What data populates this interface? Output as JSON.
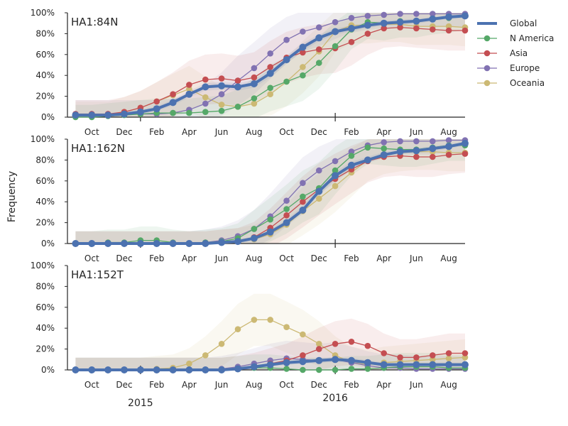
{
  "chart_data": {
    "type": "line",
    "ylabel": "Frequency",
    "ylim": [
      0,
      1
    ],
    "y_ticks": [
      "0%",
      "20%",
      "40%",
      "60%",
      "80%",
      "100%"
    ],
    "x_ticks": [
      "Oct",
      "Dec",
      "Feb",
      "Apr",
      "Jun",
      "Aug",
      "Oct",
      "Dec",
      "Feb",
      "Apr",
      "Jun",
      "Aug"
    ],
    "x_ticks_t": [
      1.5,
      3.5,
      5.5,
      7.5,
      9.5,
      11.5,
      13.5,
      15.5,
      17.5,
      19.5,
      21.5,
      23.5
    ],
    "year_labels": [
      {
        "label": "2015",
        "t": 4.5
      },
      {
        "label": "2016",
        "t": 16.5
      }
    ],
    "year_ticks_t": [
      4.5,
      16.5
    ],
    "xlim": [
      0,
      24.5
    ],
    "t": [
      0.5,
      1.5,
      2.5,
      3.5,
      4.5,
      5.5,
      6.5,
      7.5,
      8.5,
      9.5,
      10.5,
      11.5,
      12.5,
      13.5,
      14.5,
      15.5,
      16.5,
      17.5,
      18.5,
      19.5,
      20.5,
      21.5,
      22.5,
      23.5,
      24.5
    ],
    "legend": {
      "placement": "right",
      "entries": [
        "Global",
        "N America",
        "Asia",
        "Europe",
        "Oceania"
      ]
    },
    "colors": {
      "Global": "#4c72b0",
      "N America": "#55a868",
      "Asia": "#c44e52",
      "Europe": "#8172b2",
      "Oceania": "#ccb974"
    },
    "panels": [
      {
        "title": "HA1:84N",
        "series": [
          {
            "name": "Global",
            "values": [
              0.02,
              0.02,
              0.02,
              0.03,
              0.05,
              0.08,
              0.14,
              0.22,
              0.29,
              0.3,
              0.29,
              0.32,
              0.42,
              0.55,
              0.67,
              0.76,
              0.82,
              0.85,
              0.88,
              0.9,
              0.91,
              0.92,
              0.94,
              0.96,
              0.97
            ]
          },
          {
            "name": "N America",
            "values": [
              0.0,
              0.0,
              0.01,
              0.02,
              0.03,
              0.04,
              0.04,
              0.04,
              0.05,
              0.06,
              0.1,
              0.18,
              0.28,
              0.34,
              0.4,
              0.52,
              0.68,
              0.84,
              0.91,
              0.9,
              0.92,
              0.92,
              0.94,
              0.95,
              0.97
            ]
          },
          {
            "name": "Asia",
            "values": [
              0.03,
              0.03,
              0.03,
              0.05,
              0.09,
              0.15,
              0.22,
              0.31,
              0.36,
              0.37,
              0.35,
              0.38,
              0.48,
              0.57,
              0.62,
              0.65,
              0.66,
              0.72,
              0.8,
              0.85,
              0.86,
              0.85,
              0.84,
              0.83,
              0.83
            ]
          },
          {
            "name": "Europe",
            "values": [
              0.03,
              0.03,
              0.03,
              0.03,
              0.03,
              0.03,
              0.04,
              0.07,
              0.13,
              0.22,
              0.35,
              0.47,
              0.61,
              0.74,
              0.82,
              0.86,
              0.91,
              0.95,
              0.97,
              0.98,
              0.99,
              0.99,
              0.99,
              0.99,
              0.99
            ]
          },
          {
            "name": "Oceania",
            "values": [
              0.02,
              0.02,
              0.02,
              0.05,
              0.09,
              0.15,
              0.21,
              0.27,
              0.19,
              0.12,
              0.1,
              0.13,
              0.22,
              0.34,
              0.48,
              0.63,
              0.82,
              0.88,
              0.88,
              0.89,
              0.89,
              0.87,
              0.87,
              0.87,
              0.86
            ]
          }
        ]
      },
      {
        "title": "HA1:162N",
        "series": [
          {
            "name": "Global",
            "values": [
              0.0,
              0.0,
              0.0,
              0.0,
              0.0,
              0.0,
              0.0,
              0.0,
              0.0,
              0.01,
              0.02,
              0.05,
              0.11,
              0.2,
              0.32,
              0.5,
              0.65,
              0.75,
              0.8,
              0.85,
              0.88,
              0.89,
              0.91,
              0.93,
              0.96
            ]
          },
          {
            "name": "N America",
            "values": [
              0.0,
              0.0,
              0.01,
              0.01,
              0.03,
              0.03,
              0.01,
              0.0,
              0.01,
              0.02,
              0.05,
              0.14,
              0.23,
              0.33,
              0.45,
              0.53,
              0.7,
              0.84,
              0.92,
              0.91,
              0.9,
              0.9,
              0.92,
              0.94,
              0.94
            ]
          },
          {
            "name": "Asia",
            "values": [
              0.0,
              0.0,
              0.0,
              0.0,
              0.0,
              0.0,
              0.0,
              0.0,
              0.0,
              0.01,
              0.02,
              0.06,
              0.15,
              0.27,
              0.4,
              0.52,
              0.62,
              0.71,
              0.79,
              0.83,
              0.84,
              0.83,
              0.83,
              0.85,
              0.86
            ]
          },
          {
            "name": "Europe",
            "values": [
              0.0,
              0.0,
              0.0,
              0.0,
              0.0,
              0.0,
              0.0,
              0.0,
              0.01,
              0.03,
              0.07,
              0.14,
              0.26,
              0.41,
              0.58,
              0.7,
              0.79,
              0.88,
              0.94,
              0.97,
              0.98,
              0.98,
              0.98,
              0.99,
              0.99
            ]
          },
          {
            "name": "Oceania",
            "values": [
              0.0,
              0.0,
              0.0,
              0.0,
              0.0,
              0.0,
              0.0,
              0.0,
              0.0,
              0.01,
              0.02,
              0.04,
              0.09,
              0.18,
              0.31,
              0.43,
              0.55,
              0.68,
              0.8,
              0.85,
              0.87,
              0.88,
              0.88,
              0.87,
              0.87
            ]
          }
        ]
      },
      {
        "title": "HA1:152T",
        "series": [
          {
            "name": "Global",
            "values": [
              0.0,
              0.0,
              0.0,
              0.0,
              0.0,
              0.0,
              0.0,
              0.0,
              0.0,
              0.0,
              0.01,
              0.03,
              0.05,
              0.07,
              0.08,
              0.09,
              0.1,
              0.09,
              0.07,
              0.05,
              0.05,
              0.05,
              0.05,
              0.05,
              0.05
            ]
          },
          {
            "name": "N America",
            "values": [
              0.0,
              0.0,
              0.0,
              0.0,
              0.0,
              0.0,
              0.0,
              0.0,
              0.0,
              0.0,
              0.01,
              0.02,
              0.02,
              0.01,
              0.0,
              0.0,
              0.0,
              0.01,
              0.01,
              0.02,
              0.03,
              0.03,
              0.03,
              0.02,
              0.02
            ]
          },
          {
            "name": "Asia",
            "values": [
              0.0,
              0.0,
              0.0,
              0.0,
              0.0,
              0.0,
              0.0,
              0.0,
              0.0,
              0.0,
              0.01,
              0.03,
              0.06,
              0.09,
              0.14,
              0.2,
              0.25,
              0.27,
              0.23,
              0.16,
              0.12,
              0.12,
              0.14,
              0.16,
              0.16
            ]
          },
          {
            "name": "Europe",
            "values": [
              0.0,
              0.0,
              0.0,
              0.0,
              0.0,
              0.0,
              0.0,
              0.0,
              0.0,
              0.01,
              0.03,
              0.06,
              0.09,
              0.11,
              0.1,
              0.09,
              0.1,
              0.07,
              0.04,
              0.02,
              0.02,
              0.01,
              0.01,
              0.01,
              0.01
            ]
          },
          {
            "name": "Oceania",
            "values": [
              0.0,
              0.0,
              0.0,
              0.0,
              0.0,
              0.01,
              0.02,
              0.06,
              0.14,
              0.25,
              0.39,
              0.48,
              0.48,
              0.41,
              0.34,
              0.25,
              0.14,
              0.07,
              0.05,
              0.07,
              0.08,
              0.09,
              0.1,
              0.11,
              0.12
            ]
          }
        ]
      }
    ]
  }
}
